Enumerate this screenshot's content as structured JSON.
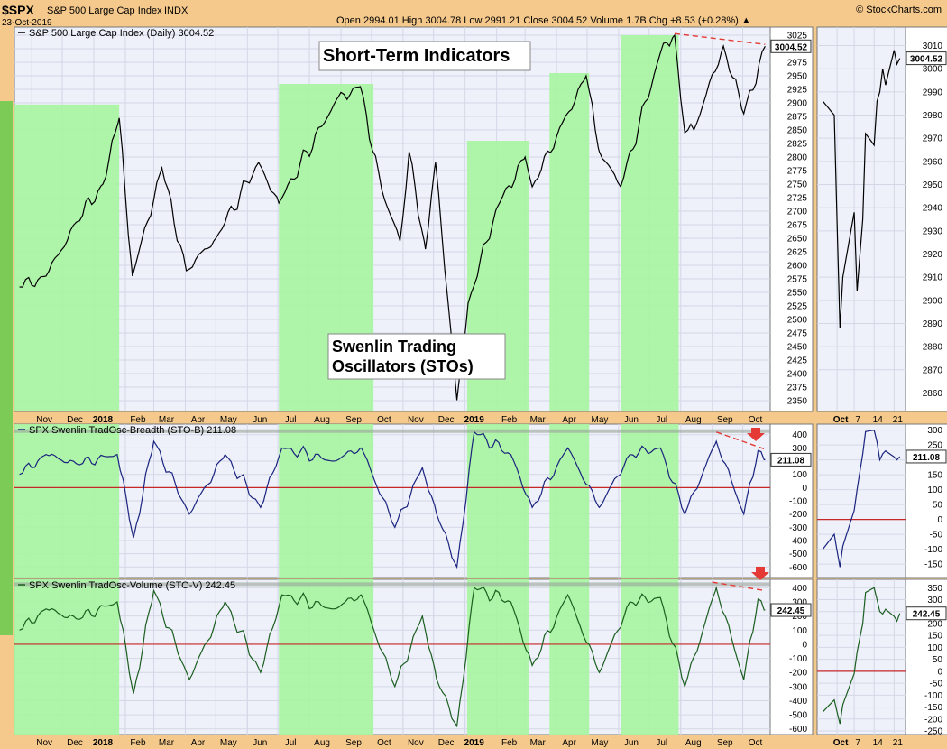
{
  "header": {
    "symbol": "$SPX",
    "name": "S&P 500 Large Cap Index",
    "exchange": "INDX",
    "date": "23-Oct-2019",
    "stats": "Open 2994.01  High 3004.78  Low 2991.21  Close 3004.52  Volume 1.7B  Chg +8.53 (+0.28%) ▲",
    "brand": "© StockCharts.com"
  },
  "colors": {
    "price": "#000000",
    "breadth": "#1A237E",
    "volume": "#1B5E20",
    "highlight": "#A6F5A0",
    "trendline": "#E53935",
    "arrow": "#E53935",
    "panel_bg": "#EEF1FA"
  },
  "annotations": {
    "callout_top": "Short-Term Indicators",
    "callout_mid_line1": "Swenlin Trading",
    "callout_mid_line2": "Oscillators (STOs)"
  },
  "chart_data": [
    {
      "type": "line",
      "title": "S&P 500 Large Cap Index (Daily) 3004.52",
      "series": [
        {
          "name": "S&P 500 Large Cap Index (Daily)",
          "x": [
            "2017-10-20",
            "2017-11-15",
            "2017-12-15",
            "2018-01-10",
            "2018-01-26",
            "2018-02-08",
            "2018-03-09",
            "2018-04-02",
            "2018-05-01",
            "2018-06-12",
            "2018-07-02",
            "2018-08-29",
            "2018-09-20",
            "2018-10-11",
            "2018-10-29",
            "2018-11-07",
            "2018-11-23",
            "2018-12-03",
            "2018-12-24",
            "2019-01-04",
            "2019-02-01",
            "2019-03-01",
            "2019-03-08",
            "2019-04-30",
            "2019-05-13",
            "2019-06-03",
            "2019-07-15",
            "2019-07-26",
            "2019-08-05",
            "2019-08-14",
            "2019-09-12",
            "2019-10-02",
            "2019-10-23"
          ],
          "values": [
            2560,
            2580,
            2680,
            2750,
            2872,
            2580,
            2780,
            2590,
            2650,
            2790,
            2715,
            2910,
            2930,
            2740,
            2645,
            2810,
            2630,
            2790,
            2351,
            2530,
            2705,
            2800,
            2745,
            2950,
            2810,
            2745,
            3010,
            3025,
            2845,
            2850,
            3005,
            2880,
            3004.52
          ]
        }
      ],
      "ylim": [
        2330,
        3040
      ],
      "yticks": [
        2350,
        2375,
        2400,
        2425,
        2450,
        2475,
        2500,
        2525,
        2550,
        2575,
        2600,
        2625,
        2650,
        2675,
        2700,
        2725,
        2750,
        2775,
        2800,
        2825,
        2850,
        2875,
        2900,
        2925,
        2950,
        2975,
        3000,
        3025
      ],
      "last_label": "3004.52",
      "x_tick_labels": [
        "Nov",
        "Dec",
        "2018",
        "Feb",
        "Mar",
        "Apr",
        "May",
        "Jun",
        "Jul",
        "Aug",
        "Sep",
        "Oct",
        "Nov",
        "Dec",
        "2019",
        "Feb",
        "Mar",
        "Apr",
        "May",
        "Jun",
        "Jul",
        "Aug",
        "Sep",
        "Oct"
      ],
      "highlight_ranges": [
        [
          "2017-10-15",
          "2018-01-26"
        ],
        [
          "2018-07-02",
          "2018-10-03"
        ],
        [
          "2019-01-03",
          "2019-03-05"
        ],
        [
          "2019-03-25",
          "2019-05-03"
        ],
        [
          "2019-06-03",
          "2019-07-30"
        ]
      ],
      "trendline": {
        "x": [
          "2019-07-26",
          "2019-10-23"
        ],
        "values": [
          3028,
          3008
        ]
      }
    },
    {
      "type": "line",
      "title": "SPX Swenlin TradOsc-Breadth (STO-B) 211.08",
      "series": [
        {
          "name": "SPX Swenlin TradOsc-Breadth (STO-B)",
          "x": [
            "2017-10-20",
            "2017-11-15",
            "2017-12-15",
            "2018-01-24",
            "2018-02-09",
            "2018-03-01",
            "2018-04-05",
            "2018-05-10",
            "2018-06-14",
            "2018-07-05",
            "2018-08-24",
            "2018-09-21",
            "2018-10-24",
            "2018-11-20",
            "2018-12-04",
            "2018-12-24",
            "2019-01-10",
            "2019-02-15",
            "2019-03-08",
            "2019-04-12",
            "2019-05-13",
            "2019-06-12",
            "2019-07-12",
            "2019-08-05",
            "2019-09-05",
            "2019-10-02",
            "2019-10-16",
            "2019-10-23"
          ],
          "values": [
            100,
            250,
            180,
            250,
            -380,
            350,
            -200,
            250,
            -150,
            300,
            200,
            300,
            -300,
            150,
            -200,
            -600,
            420,
            250,
            -150,
            300,
            -150,
            250,
            300,
            -200,
            350,
            -200,
            280,
            211.08
          ]
        }
      ],
      "ylim": [
        -680,
        480
      ],
      "yticks": [
        -600,
        -500,
        -400,
        -300,
        -200,
        -100,
        0,
        100,
        200,
        300,
        400
      ],
      "last_label": "211.08",
      "trendline": {
        "x": [
          "2019-09-05",
          "2019-10-23"
        ],
        "values": [
          420,
          290
        ]
      }
    },
    {
      "type": "line",
      "title": "SPX Swenlin TradOsc-Volume (STO-V) 242.45",
      "series": [
        {
          "name": "SPX Swenlin TradOsc-Volume (STO-V)",
          "x": [
            "2017-10-20",
            "2017-11-15",
            "2017-12-15",
            "2018-01-24",
            "2018-02-09",
            "2018-03-01",
            "2018-04-05",
            "2018-05-10",
            "2018-06-14",
            "2018-07-05",
            "2018-08-24",
            "2018-09-21",
            "2018-10-24",
            "2018-11-20",
            "2018-12-04",
            "2018-12-24",
            "2019-01-10",
            "2019-02-15",
            "2019-03-08",
            "2019-04-12",
            "2019-05-13",
            "2019-06-12",
            "2019-07-12",
            "2019-08-05",
            "2019-09-05",
            "2019-10-02",
            "2019-10-16",
            "2019-10-23"
          ],
          "values": [
            100,
            250,
            180,
            300,
            -350,
            380,
            -250,
            300,
            -200,
            350,
            250,
            350,
            -300,
            200,
            -250,
            -580,
            400,
            300,
            -150,
            350,
            -200,
            300,
            330,
            -300,
            400,
            -250,
            320,
            242.45
          ]
        }
      ],
      "ylim": [
        -640,
        460
      ],
      "yticks": [
        -600,
        -500,
        -400,
        -300,
        -200,
        -100,
        0,
        100,
        200,
        300,
        400
      ],
      "last_label": "242.45",
      "trendline": {
        "x": [
          "2019-09-01",
          "2019-10-23"
        ],
        "values": [
          440,
          380
        ]
      }
    },
    {
      "type": "line",
      "title": "",
      "series": [
        {
          "name": "",
          "x": [
            "2019-09-26",
            "2019-09-30",
            "2019-10-02",
            "2019-10-03",
            "2019-10-07",
            "2019-10-08",
            "2019-10-10",
            "2019-10-11",
            "2019-10-14",
            "2019-10-15",
            "2019-10-16",
            "2019-10-17",
            "2019-10-18",
            "2019-10-21",
            "2019-10-22",
            "2019-10-23"
          ],
          "values": [
            2986,
            2980,
            2888,
            2910,
            2938,
            2904,
            2935,
            2972,
            2967,
            2986,
            2990,
            3000,
            2993,
            3008,
            3002,
            3004.52
          ]
        }
      ],
      "ylim": [
        2852,
        3018
      ],
      "yticks": [
        2860,
        2870,
        2880,
        2890,
        2900,
        2910,
        2920,
        2930,
        2940,
        2950,
        2960,
        2970,
        2980,
        2990,
        3000,
        3010
      ],
      "last_label": "3004.52",
      "x_tick_labels": [
        "Oct",
        "7",
        "14",
        "21"
      ]
    },
    {
      "type": "line",
      "title": "",
      "series": [
        {
          "name": "",
          "x": [
            "2019-09-26",
            "2019-09-30",
            "2019-10-02",
            "2019-10-03",
            "2019-10-07",
            "2019-10-08",
            "2019-10-10",
            "2019-10-11",
            "2019-10-14",
            "2019-10-15",
            "2019-10-16",
            "2019-10-17",
            "2019-10-18",
            "2019-10-21",
            "2019-10-22",
            "2019-10-23"
          ],
          "values": [
            -100,
            -50,
            -160,
            -90,
            30,
            100,
            220,
            295,
            300,
            260,
            200,
            220,
            230,
            210,
            200,
            211.08
          ]
        }
      ],
      "ylim": [
        -195,
        320
      ],
      "yticks": [
        -150,
        -100,
        -50,
        0,
        50,
        100,
        150,
        200,
        250,
        300
      ],
      "last_label": "211.08"
    },
    {
      "type": "line",
      "title": "",
      "series": [
        {
          "name": "",
          "x": [
            "2019-09-26",
            "2019-09-30",
            "2019-10-02",
            "2019-10-03",
            "2019-10-07",
            "2019-10-08",
            "2019-10-10",
            "2019-10-11",
            "2019-10-14",
            "2019-10-15",
            "2019-10-16",
            "2019-10-17",
            "2019-10-18",
            "2019-10-21",
            "2019-10-22",
            "2019-10-23"
          ],
          "values": [
            -170,
            -120,
            -220,
            -140,
            -10,
            80,
            200,
            330,
            350,
            300,
            250,
            240,
            260,
            230,
            210,
            242.45
          ]
        }
      ],
      "ylim": [
        -265,
        385
      ],
      "yticks": [
        -250,
        -200,
        -150,
        -100,
        -50,
        0,
        50,
        100,
        150,
        200,
        250,
        300,
        350
      ],
      "last_label": "242.45",
      "x_tick_labels": [
        "Oct",
        "7",
        "14",
        "21"
      ]
    }
  ]
}
